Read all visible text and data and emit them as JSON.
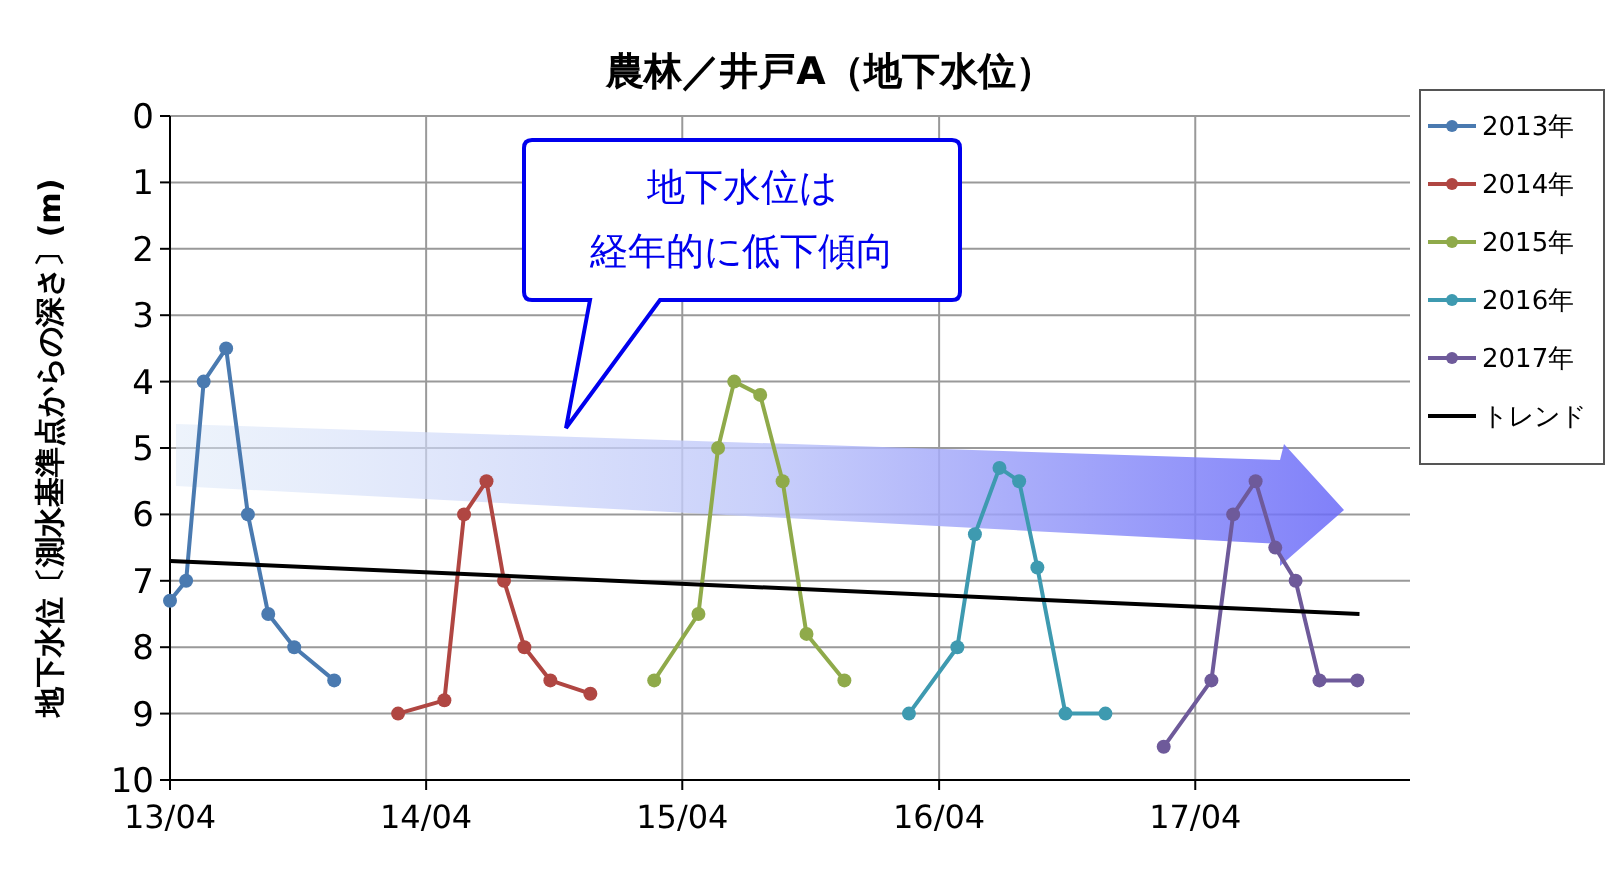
{
  "chart_data": {
    "type": "line",
    "title": "農林／井戸A（地下水位）",
    "ylabel": "地下水位〔測水基準点からの深さ〕(m)",
    "annotations": [
      "地下水位は",
      "経年的に低下傾向"
    ],
    "xlim": [
      "2013-04-01",
      "2018-02-01"
    ],
    "xticks": [
      {
        "value": "2013-04-01",
        "label": "13/04"
      },
      {
        "value": "2014-04-01",
        "label": "14/04"
      },
      {
        "value": "2015-04-01",
        "label": "15/04"
      },
      {
        "value": "2016-04-01",
        "label": "16/04"
      },
      {
        "value": "2017-04-01",
        "label": "17/04"
      }
    ],
    "ylim": [
      10,
      0
    ],
    "yticks": [
      0,
      1,
      2,
      3,
      4,
      5,
      6,
      7,
      8,
      9,
      10
    ],
    "grid": true,
    "legend": "right",
    "marker": "circle",
    "line_style": "solid",
    "series": [
      {
        "name": "2013年",
        "color": "#4a7ab0",
        "x": [
          "2013-04-01",
          "2013-04-24",
          "2013-05-19",
          "2013-06-20",
          "2013-07-21",
          "2013-08-19",
          "2013-09-25",
          "2013-11-21"
        ],
        "values": [
          7.3,
          7.0,
          4.0,
          3.5,
          6.0,
          7.5,
          8.0,
          8.5
        ]
      },
      {
        "name": "2014年",
        "color": "#b04642",
        "x": [
          "2014-02-20",
          "2014-04-27",
          "2014-05-25",
          "2014-06-26",
          "2014-07-21",
          "2014-08-19",
          "2014-09-25",
          "2014-11-21"
        ],
        "values": [
          9.0,
          8.8,
          6.0,
          5.5,
          7.0,
          8.0,
          8.5,
          8.7
        ]
      },
      {
        "name": "2015年",
        "color": "#8faa4a",
        "x": [
          "2015-02-20",
          "2015-04-24",
          "2015-05-22",
          "2015-06-14",
          "2015-07-21",
          "2015-08-22",
          "2015-09-25",
          "2015-11-18"
        ],
        "values": [
          8.5,
          7.5,
          5.0,
          4.0,
          4.2,
          5.5,
          7.8,
          8.5
        ]
      },
      {
        "name": "2016年",
        "color": "#3e9ab0",
        "x": [
          "2016-02-18",
          "2016-04-27",
          "2016-05-22",
          "2016-06-26",
          "2016-07-24",
          "2016-08-19",
          "2016-09-28",
          "2016-11-24"
        ],
        "values": [
          9.0,
          8.0,
          6.3,
          5.3,
          5.5,
          6.8,
          9.0,
          9.0
        ]
      },
      {
        "name": "2017年",
        "color": "#6e5a9a",
        "x": [
          "2017-02-15",
          "2017-04-24",
          "2017-05-25",
          "2017-06-26",
          "2017-07-24",
          "2017-08-22",
          "2017-09-25",
          "2017-11-18"
        ],
        "values": [
          9.5,
          8.5,
          6.0,
          5.5,
          6.5,
          7.0,
          8.5,
          8.5
        ]
      },
      {
        "name": "トレンド",
        "color": "#000000",
        "marker": "none",
        "x": [
          "2013-04-01",
          "2017-11-21"
        ],
        "values": [
          6.7,
          7.5
        ]
      }
    ]
  }
}
